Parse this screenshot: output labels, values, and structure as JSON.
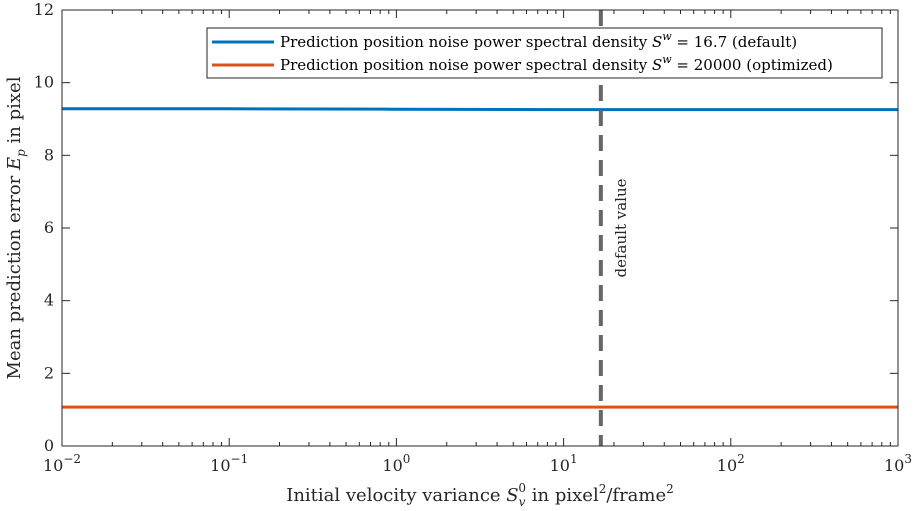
{
  "chart_data": {
    "type": "line",
    "xscale": "log",
    "xlim": [
      0.01,
      1000
    ],
    "ylim": [
      0,
      12
    ],
    "xticks": [
      {
        "value": 0.01,
        "base": "10",
        "exp": "−2"
      },
      {
        "value": 0.1,
        "base": "10",
        "exp": "−1"
      },
      {
        "value": 1,
        "base": "10",
        "exp": "0"
      },
      {
        "value": 10,
        "base": "10",
        "exp": "1"
      },
      {
        "value": 100,
        "base": "10",
        "exp": "2"
      },
      {
        "value": 1000,
        "base": "10",
        "exp": "3"
      }
    ],
    "yticks": [
      0,
      2,
      4,
      6,
      8,
      10,
      12
    ],
    "xlabel": {
      "before": "Initial velocity variance ",
      "sym": "S",
      "sub": "v",
      "sup": "0",
      "mid": " in pixel",
      "sup2": "2",
      "slash": "/frame",
      "sup3": "2"
    },
    "ylabel": {
      "before": "Mean prediction error ",
      "sym": "E",
      "sub": "p",
      "after": " in pixel"
    },
    "series": [
      {
        "name": "Prediction position noise power spectral density S^w = 16.7 (default)",
        "legend": {
          "before": "Prediction position noise power spectral density ",
          "sym": "S",
          "sup": "w",
          "after": " = 16.7 (default)"
        },
        "color": "#0072BD",
        "x": [
          0.01,
          0.1,
          1,
          10,
          16.7,
          100,
          1000
        ],
        "y": [
          9.28,
          9.28,
          9.27,
          9.26,
          9.26,
          9.26,
          9.26
        ]
      },
      {
        "name": "Prediction position noise power spectral density S^w = 20000 (optimized)",
        "legend": {
          "before": "Prediction position noise power spectral density ",
          "sym": "S",
          "sup": "w",
          "after": " = 20000 (optimized)"
        },
        "color": "#D95319",
        "x": [
          0.01,
          0.1,
          1,
          10,
          16.7,
          100,
          1000
        ],
        "y": [
          1.07,
          1.07,
          1.07,
          1.07,
          1.07,
          1.07,
          1.07
        ]
      }
    ],
    "vline": {
      "x": 16.7,
      "label": "default value",
      "color": "#666666"
    },
    "legend_position": "top-right",
    "grid": false
  }
}
